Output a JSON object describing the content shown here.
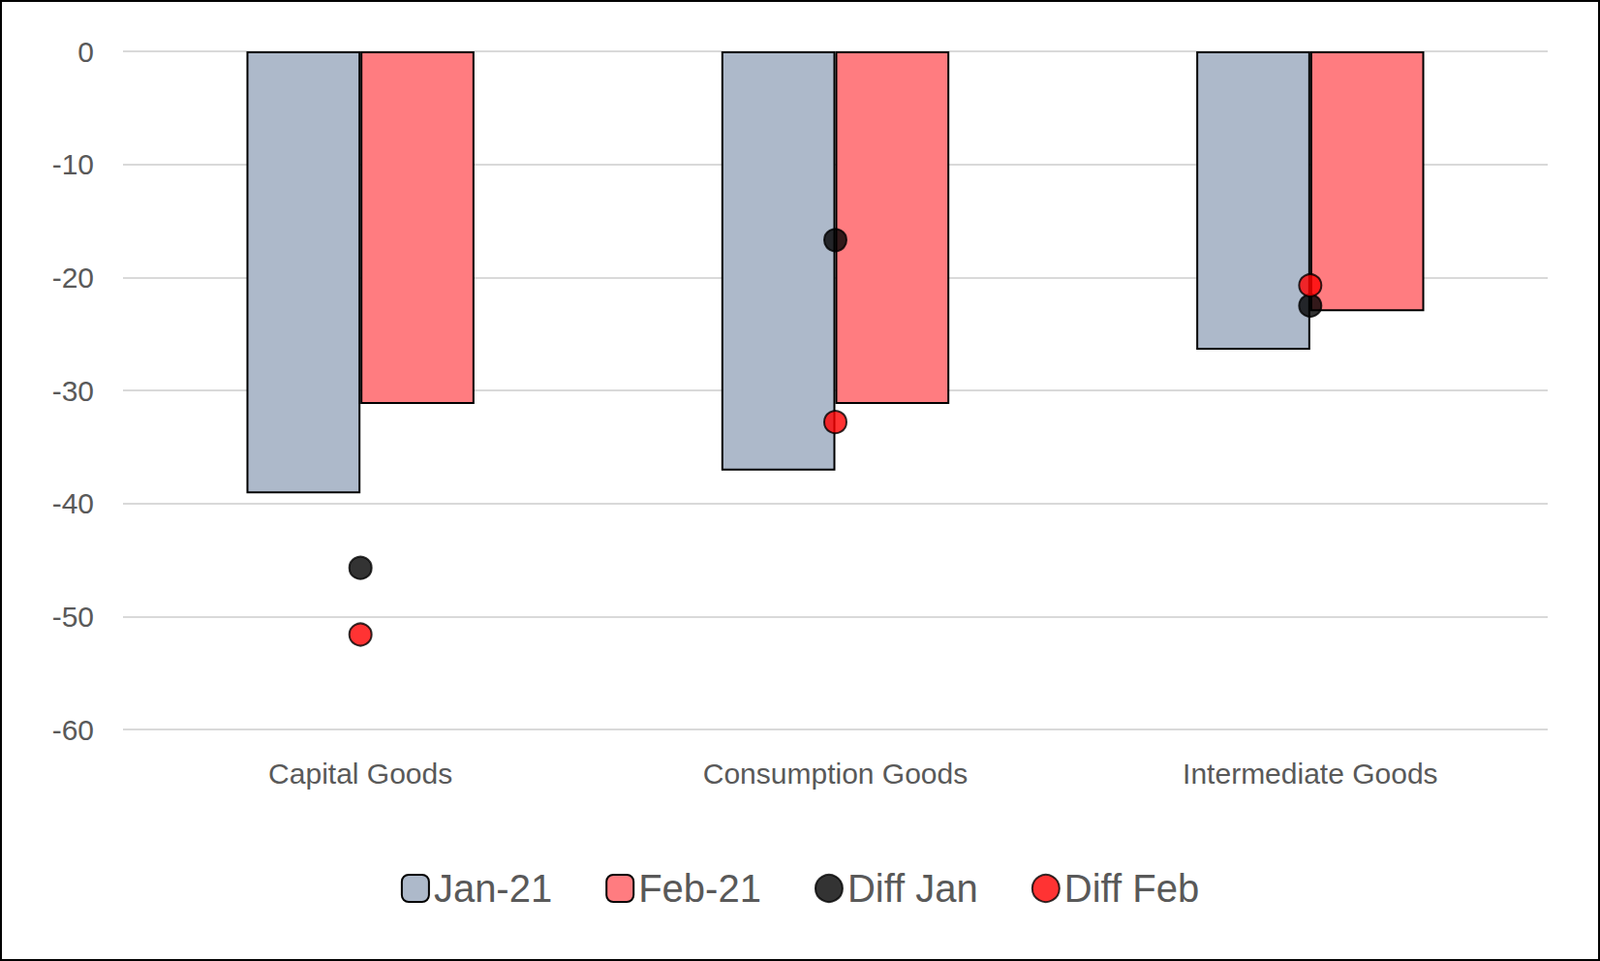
{
  "chart_data": {
    "type": "bar",
    "categories": [
      "Capital Goods",
      "Consumption Goods",
      "Intermediate Goods"
    ],
    "series": [
      {
        "name": "Jan-21",
        "type": "bar",
        "color": "#adb9ca",
        "values": [
          -39.1,
          -37.1,
          -26.4
        ]
      },
      {
        "name": "Feb-21",
        "type": "bar",
        "color": "#ff7c80",
        "values": [
          -31.2,
          -31.2,
          -23.0
        ]
      },
      {
        "name": "Diff Jan",
        "type": "scatter",
        "marker": "circle",
        "color": "#000000",
        "values": [
          -45.7,
          -16.7,
          -22.5
        ]
      },
      {
        "name": "Diff Feb",
        "type": "scatter",
        "marker": "circle",
        "color": "#ff0000",
        "values": [
          -51.6,
          -32.8,
          -20.7
        ]
      }
    ],
    "ylim": [
      -60,
      0
    ],
    "yticks": [
      -60,
      -50,
      -40,
      -30,
      -20,
      -10,
      0
    ],
    "grid": true,
    "legend": "bottom"
  }
}
